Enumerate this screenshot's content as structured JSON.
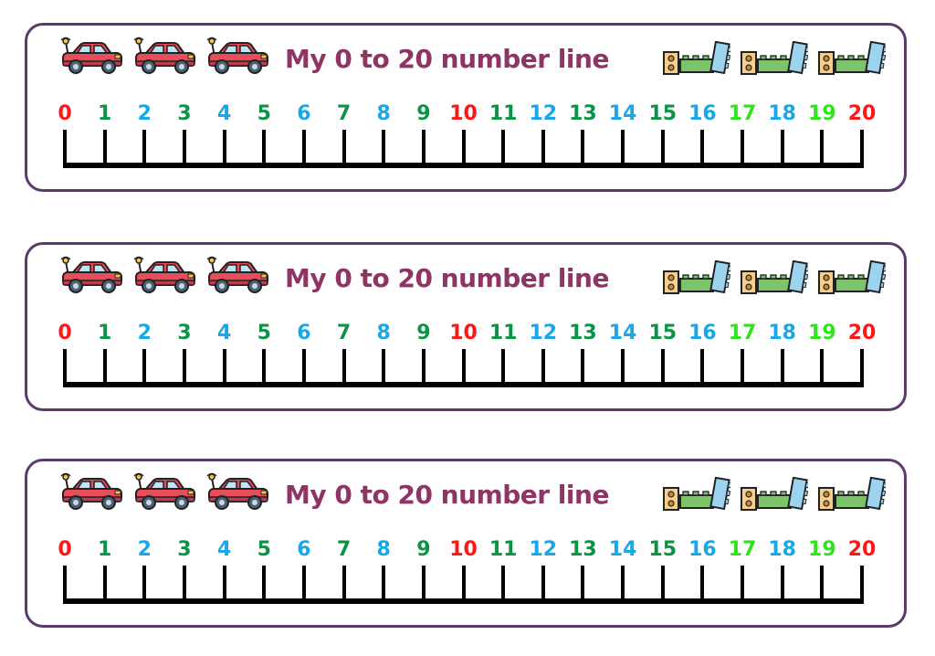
{
  "title": "My 0 to 20 number line",
  "title_color": "#8e3566",
  "border_color": "#5b3a6e",
  "cards": [
    1,
    2,
    3
  ],
  "car_icon": "toy-car-icon",
  "block_icon": "toy-building-blocks-icon",
  "numbers": [
    {
      "label": "0",
      "color": "#ff1616"
    },
    {
      "label": "1",
      "color": "#0b9444"
    },
    {
      "label": "2",
      "color": "#1aa7e8"
    },
    {
      "label": "3",
      "color": "#0b9444"
    },
    {
      "label": "4",
      "color": "#1aa7e8"
    },
    {
      "label": "5",
      "color": "#0b9444"
    },
    {
      "label": "6",
      "color": "#1aa7e8"
    },
    {
      "label": "7",
      "color": "#0b9444"
    },
    {
      "label": "8",
      "color": "#1aa7e8"
    },
    {
      "label": "9",
      "color": "#0b9444"
    },
    {
      "label": "10",
      "color": "#ff1616"
    },
    {
      "label": "11",
      "color": "#0b9444"
    },
    {
      "label": "12",
      "color": "#1aa7e8"
    },
    {
      "label": "13",
      "color": "#0b9444"
    },
    {
      "label": "14",
      "color": "#1aa7e8"
    },
    {
      "label": "15",
      "color": "#0b9444"
    },
    {
      "label": "16",
      "color": "#1aa7e8"
    },
    {
      "label": "17",
      "color": "#31e31c"
    },
    {
      "label": "18",
      "color": "#1aa7e8"
    },
    {
      "label": "19",
      "color": "#31e31c"
    },
    {
      "label": "20",
      "color": "#ff1616"
    }
  ]
}
